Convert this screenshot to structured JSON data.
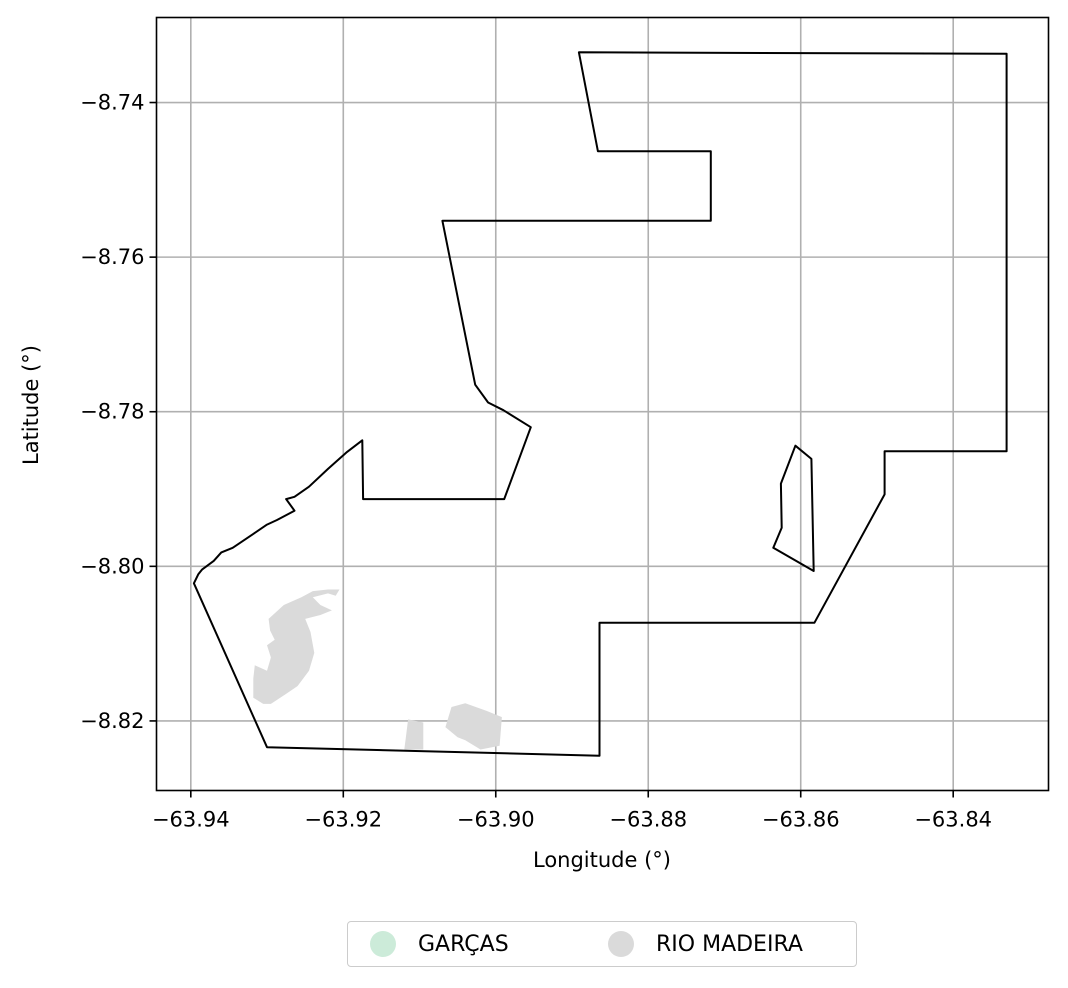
{
  "chart_data": {
    "type": "map",
    "xlabel": "Longitude (°)",
    "ylabel": "Latitude (°)",
    "xlim": [
      -63.9445,
      -63.8275
    ],
    "ylim": [
      -8.829,
      -8.729
    ],
    "xticks": [
      -63.94,
      -63.92,
      -63.9,
      -63.88,
      -63.86,
      -63.84
    ],
    "xtick_labels": [
      "−63.94",
      "−63.92",
      "−63.90",
      "−63.88",
      "−63.86",
      "−63.84"
    ],
    "yticks": [
      -8.74,
      -8.76,
      -8.78,
      -8.8,
      -8.82
    ],
    "ytick_labels": [
      "−8.74",
      "−8.76",
      "−8.78",
      "−8.80",
      "−8.82"
    ],
    "grid": true,
    "boundary_color": "#000000",
    "outer_boundary": [
      [
        -63.8891,
        -8.7335
      ],
      [
        -63.833,
        -8.7337
      ],
      [
        -63.833,
        -8.7851
      ],
      [
        -63.849,
        -8.7851
      ],
      [
        -63.849,
        -8.7907
      ],
      [
        -63.8582,
        -8.8073
      ],
      [
        -63.8864,
        -8.8073
      ],
      [
        -63.8864,
        -8.8245
      ],
      [
        -63.93,
        -8.8234
      ],
      [
        -63.9396,
        -8.8022
      ],
      [
        -63.939,
        -8.801
      ],
      [
        -63.9385,
        -8.8004
      ],
      [
        -63.937,
        -8.7993
      ],
      [
        -63.936,
        -8.7982
      ],
      [
        -63.9345,
        -8.7976
      ],
      [
        -63.9318,
        -8.7958
      ],
      [
        -63.93,
        -8.7946
      ],
      [
        -63.9287,
        -8.794
      ],
      [
        -63.9264,
        -8.7928
      ],
      [
        -63.9275,
        -8.7913
      ],
      [
        -63.9264,
        -8.791
      ],
      [
        -63.9245,
        -8.7897
      ],
      [
        -63.922,
        -8.7874
      ],
      [
        -63.9195,
        -8.7852
      ],
      [
        -63.9175,
        -8.7837
      ],
      [
        -63.9174,
        -8.7913
      ],
      [
        -63.8989,
        -8.7913
      ],
      [
        -63.8954,
        -8.782
      ],
      [
        -63.899,
        -8.7798
      ],
      [
        -63.901,
        -8.7788
      ],
      [
        -63.9027,
        -8.7765
      ],
      [
        -63.907,
        -8.7553
      ],
      [
        -63.8718,
        -8.7553
      ],
      [
        -63.8718,
        -8.7463
      ],
      [
        -63.8866,
        -8.7463
      ]
    ],
    "inner_boundary": [
      [
        -63.8607,
        -8.7844
      ],
      [
        -63.8586,
        -8.7861
      ],
      [
        -63.8583,
        -8.8006
      ],
      [
        -63.8636,
        -8.7976
      ],
      [
        -63.8625,
        -8.795
      ],
      [
        -63.8626,
        -8.7893
      ]
    ],
    "series": [
      {
        "name": "GARÇAS",
        "color": "#ccebd9",
        "polygons": []
      },
      {
        "name": "RIO MADEIRA",
        "color": "#dadada",
        "polygons": [
          [
            [
              -63.9295,
              -8.8178
            ],
            [
              -63.9275,
              -8.8165
            ],
            [
              -63.926,
              -8.8155
            ],
            [
              -63.9245,
              -8.8135
            ],
            [
              -63.9238,
              -8.8112
            ],
            [
              -63.9243,
              -8.8085
            ],
            [
              -63.925,
              -8.8068
            ],
            [
              -63.923,
              -8.8063
            ],
            [
              -63.9215,
              -8.8057
            ],
            [
              -63.923,
              -8.805
            ],
            [
              -63.924,
              -8.804
            ],
            [
              -63.922,
              -8.8035
            ],
            [
              -63.921,
              -8.8038
            ],
            [
              -63.9205,
              -8.803
            ],
            [
              -63.922,
              -8.803
            ],
            [
              -63.924,
              -8.8032
            ],
            [
              -63.9255,
              -8.804
            ],
            [
              -63.9278,
              -8.805
            ],
            [
              -63.9298,
              -8.8068
            ],
            [
              -63.9296,
              -8.8083
            ],
            [
              -63.929,
              -8.8095
            ],
            [
              -63.93,
              -8.8102
            ],
            [
              -63.9295,
              -8.8118
            ],
            [
              -63.93,
              -8.8135
            ],
            [
              -63.9316,
              -8.8128
            ],
            [
              -63.9318,
              -8.8145
            ],
            [
              -63.9318,
              -8.817
            ],
            [
              -63.9305,
              -8.8178
            ]
          ],
          [
            [
              -63.912,
              -8.8237
            ],
            [
              -63.9095,
              -8.8237
            ],
            [
              -63.9095,
              -8.8202
            ],
            [
              -63.9115,
              -8.8198
            ],
            [
              -63.9118,
              -8.8222
            ]
          ],
          [
            [
              -63.902,
              -8.8237
            ],
            [
              -63.8995,
              -8.8232
            ],
            [
              -63.8992,
              -8.8195
            ],
            [
              -63.9012,
              -8.8187
            ],
            [
              -63.904,
              -8.8177
            ],
            [
              -63.9058,
              -8.8182
            ],
            [
              -63.9066,
              -8.8208
            ],
            [
              -63.905,
              -8.8221
            ],
            [
              -63.904,
              -8.8225
            ],
            [
              -63.903,
              -8.8231
            ]
          ]
        ]
      }
    ],
    "legend_position": "bottom-center"
  }
}
